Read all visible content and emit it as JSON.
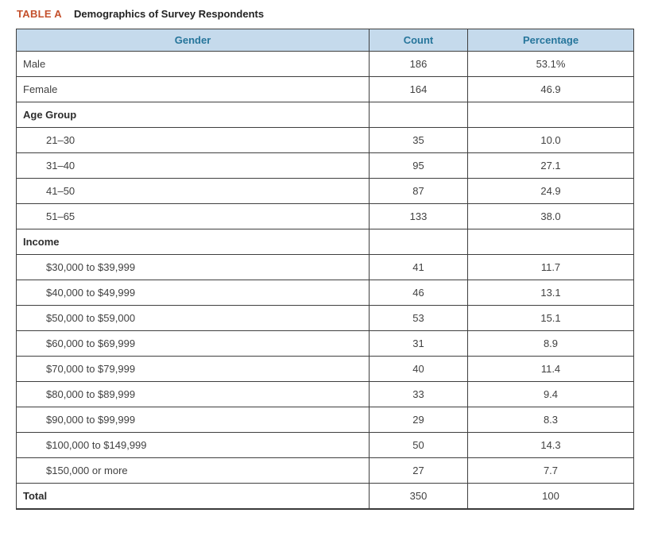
{
  "table": {
    "label": "TABLE A",
    "title": "Demographics of Survey Respondents",
    "columns": {
      "gender": "Gender",
      "count": "Count",
      "percentage": "Percentage"
    },
    "colors": {
      "caption_label": "#c4502c",
      "header_background": "#c5daec",
      "header_text": "#26759b",
      "grid_line": "#3f3f3f",
      "body_text": "#414141"
    },
    "rows": [
      {
        "type": "item",
        "label": "Male",
        "count": "186",
        "pct": "53.1%"
      },
      {
        "type": "item",
        "label": "Female",
        "count": "164",
        "pct": "46.9"
      },
      {
        "type": "section",
        "label": "Age Group",
        "count": "",
        "pct": ""
      },
      {
        "type": "sub",
        "label": "21–30",
        "count": "35",
        "pct": "10.0"
      },
      {
        "type": "sub",
        "label": "31–40",
        "count": "95",
        "pct": "27.1"
      },
      {
        "type": "sub",
        "label": "41–50",
        "count": "87",
        "pct": "24.9"
      },
      {
        "type": "sub",
        "label": "51–65",
        "count": "133",
        "pct": "38.0"
      },
      {
        "type": "section",
        "label": "Income",
        "count": "",
        "pct": ""
      },
      {
        "type": "sub",
        "label": "$30,000 to $39,999",
        "count": "41",
        "pct": "11.7"
      },
      {
        "type": "sub",
        "label": "$40,000 to $49,999",
        "count": "46",
        "pct": "13.1"
      },
      {
        "type": "sub",
        "label": "$50,000 to $59,000",
        "count": "53",
        "pct": "15.1"
      },
      {
        "type": "sub",
        "label": "$60,000 to $69,999",
        "count": "31",
        "pct": "8.9"
      },
      {
        "type": "sub",
        "label": "$70,000 to $79,999",
        "count": "40",
        "pct": "11.4"
      },
      {
        "type": "sub",
        "label": "$80,000 to $89,999",
        "count": "33",
        "pct": "9.4"
      },
      {
        "type": "sub",
        "label": "$90,000 to $99,999",
        "count": "29",
        "pct": "8.3"
      },
      {
        "type": "sub",
        "label": "$100,000 to $149,999",
        "count": "50",
        "pct": "14.3"
      },
      {
        "type": "sub",
        "label": "$150,000 or more",
        "count": "27",
        "pct": "7.7"
      },
      {
        "type": "section",
        "label": "Total",
        "count": "350",
        "pct": "100"
      }
    ]
  }
}
